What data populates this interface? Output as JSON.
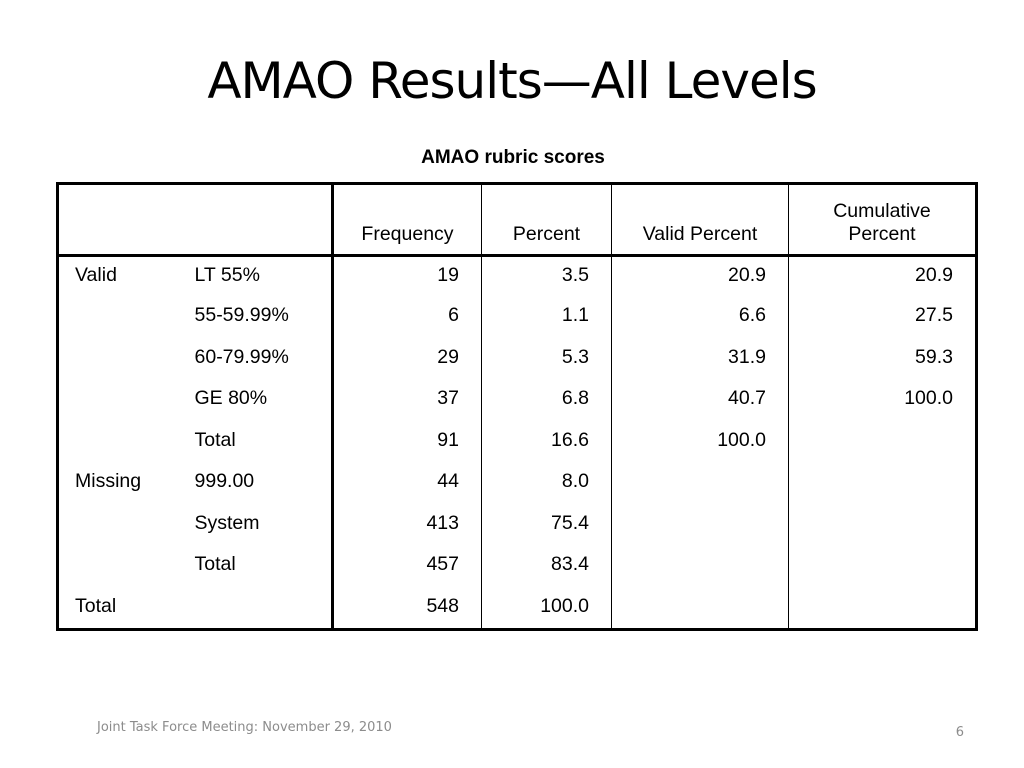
{
  "slide": {
    "title": "AMAO Results—All Levels",
    "footer_text": "Joint Task Force Meeting: November 29, 2010",
    "page_number": "6"
  },
  "table": {
    "caption": "AMAO rubric scores",
    "headers": [
      "Frequency",
      "Percent",
      "Valid Percent",
      "Cumulative Percent"
    ],
    "rows": [
      {
        "group": "Valid",
        "sub": "LT 55%",
        "frequency": "19",
        "percent": "3.5",
        "valid_percent": "20.9",
        "cumulative_percent": "20.9"
      },
      {
        "group": "",
        "sub": "55-59.99%",
        "frequency": "6",
        "percent": "1.1",
        "valid_percent": "6.6",
        "cumulative_percent": "27.5"
      },
      {
        "group": "",
        "sub": "60-79.99%",
        "frequency": "29",
        "percent": "5.3",
        "valid_percent": "31.9",
        "cumulative_percent": "59.3"
      },
      {
        "group": "",
        "sub": "GE 80%",
        "frequency": "37",
        "percent": "6.8",
        "valid_percent": "40.7",
        "cumulative_percent": "100.0"
      },
      {
        "group": "",
        "sub": "Total",
        "frequency": "91",
        "percent": "16.6",
        "valid_percent": "100.0",
        "cumulative_percent": ""
      },
      {
        "group": "Missing",
        "sub": "999.00",
        "frequency": "44",
        "percent": "8.0",
        "valid_percent": "",
        "cumulative_percent": ""
      },
      {
        "group": "",
        "sub": "System",
        "frequency": "413",
        "percent": "75.4",
        "valid_percent": "",
        "cumulative_percent": ""
      },
      {
        "group": "",
        "sub": "Total",
        "frequency": "457",
        "percent": "83.4",
        "valid_percent": "",
        "cumulative_percent": ""
      },
      {
        "group": "Total",
        "sub": "",
        "frequency": "548",
        "percent": "100.0",
        "valid_percent": "",
        "cumulative_percent": ""
      }
    ]
  }
}
